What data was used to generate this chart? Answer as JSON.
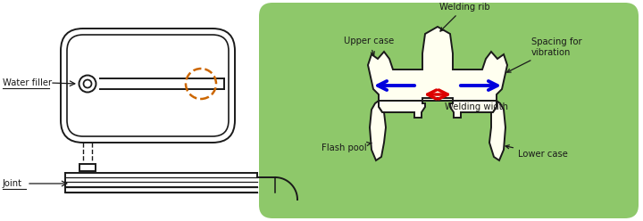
{
  "bg_color": "#ffffff",
  "green_bg": "#8ec86a",
  "cream_fill": "#fffff0",
  "line_color": "#1a1a1a",
  "orange_dashed": "#cc6600",
  "blue_arrow": "#0000dd",
  "red_arrow": "#dd0000",
  "labels": {
    "water_filler": "Water filler",
    "joint": "Joint",
    "welding_rib": "Welding rib",
    "upper_case": "Upper case",
    "spacing_vibration": "Spacing for\nvibration",
    "welding_width": "Welding width",
    "flash_pool": "Flash pool",
    "lower_case": "Lower case"
  },
  "fontsize": 7.2
}
